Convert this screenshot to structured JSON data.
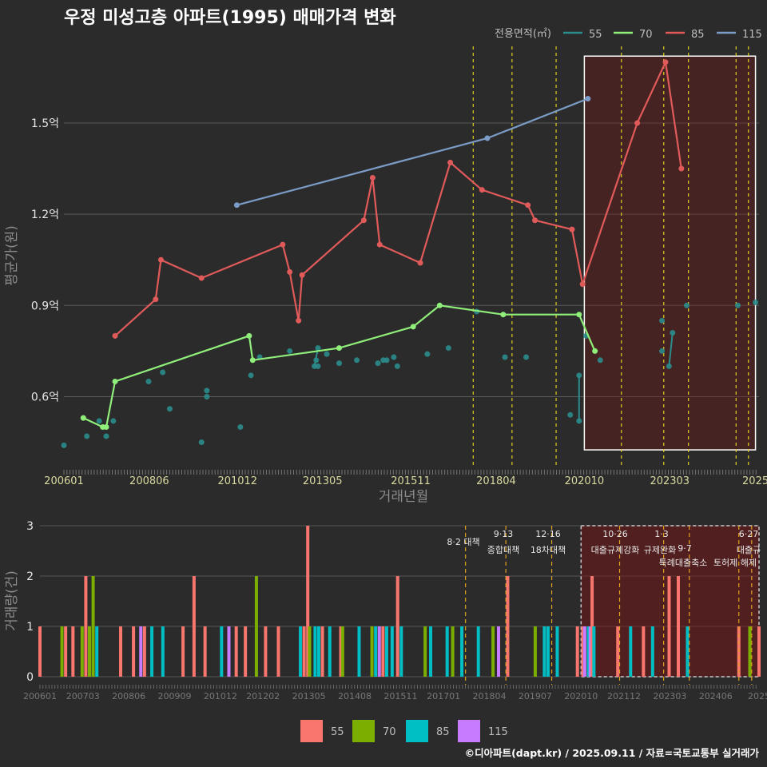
{
  "chart_data": [
    {
      "type": "line",
      "title": "우정 미성고층 아파트(1995) 매매가격 변화",
      "xlabel": "거래년월",
      "ylabel": "평균가(원)",
      "legend_title": "전용면적(㎡)",
      "x_ticks": [
        "200601",
        "200806",
        "201012",
        "201305",
        "201511",
        "201804",
        "202010",
        "202303",
        "2025"
      ],
      "y_ticks": [
        "0.6억",
        "0.9억",
        "1.2억",
        "1.5억"
      ],
      "y_tick_values": [
        0.6,
        0.9,
        1.2,
        1.5
      ],
      "ylim": [
        0.37,
        1.76
      ],
      "xlim": [
        2006.0,
        2025.7
      ],
      "highlight_range": [
        2020.75,
        2025.6
      ],
      "policy_lines": [
        2017.6,
        2018.7,
        2019.95,
        2021.8,
        2023.0,
        2023.7,
        2025.05,
        2025.4
      ],
      "series": [
        {
          "name": "55",
          "color": "#2b8c8c",
          "points": [
            [
              2006.0,
              0.44
            ],
            [
              2007.0,
              0.52
            ],
            [
              2006.65,
              0.47
            ],
            [
              2007.2,
              0.47
            ],
            [
              2007.4,
              0.52
            ],
            [
              2008.4,
              0.65
            ],
            [
              2008.8,
              0.68
            ],
            [
              2009.0,
              0.56
            ],
            [
              2009.9,
              0.45
            ],
            [
              2010.05,
              0.6
            ],
            [
              2010.05,
              0.62
            ],
            [
              2011.0,
              0.5
            ],
            [
              2011.3,
              0.67
            ],
            [
              2011.55,
              0.73
            ],
            [
              2012.4,
              0.75
            ],
            [
              2013.1,
              0.7
            ],
            [
              2013.15,
              0.72
            ],
            [
              2013.2,
              0.76
            ],
            [
              2013.2,
              0.7
            ],
            [
              2013.45,
              0.74
            ],
            [
              2013.8,
              0.71
            ],
            [
              2014.3,
              0.72
            ],
            [
              2014.9,
              0.71
            ],
            [
              2015.05,
              0.72
            ],
            [
              2015.15,
              0.72
            ],
            [
              2015.35,
              0.73
            ],
            [
              2015.45,
              0.7
            ],
            [
              2016.3,
              0.74
            ],
            [
              2016.9,
              0.76
            ],
            [
              2017.7,
              0.88
            ],
            [
              2018.5,
              0.73
            ],
            [
              2019.1,
              0.73
            ],
            [
              2020.35,
              0.54
            ],
            [
              2020.6,
              0.52
            ],
            [
              2020.6,
              0.67
            ],
            [
              2020.8,
              0.8
            ],
            [
              2021.2,
              0.72
            ],
            [
              2022.95,
              0.85
            ],
            [
              2022.95,
              0.75
            ],
            [
              2023.15,
              0.7
            ],
            [
              2023.25,
              0.81
            ],
            [
              2023.65,
              0.9
            ],
            [
              2025.1,
              0.9
            ],
            [
              2025.6,
              0.91
            ]
          ]
        },
        {
          "name": "70",
          "color": "#90ee7a",
          "points": [
            [
              2006.55,
              0.53
            ],
            [
              2007.1,
              0.5
            ],
            [
              2007.2,
              0.5
            ],
            [
              2007.45,
              0.65
            ],
            [
              2011.25,
              0.8
            ],
            [
              2011.35,
              0.72
            ],
            [
              2013.8,
              0.76
            ],
            [
              2015.9,
              0.83
            ],
            [
              2016.65,
              0.9
            ],
            [
              2018.45,
              0.87
            ],
            [
              2020.6,
              0.87
            ],
            [
              2021.05,
              0.75
            ]
          ]
        },
        {
          "name": "85",
          "color": "#e05a5a",
          "points": [
            [
              2007.45,
              0.8
            ],
            [
              2008.6,
              0.92
            ],
            [
              2008.75,
              1.05
            ],
            [
              2009.9,
              0.99
            ],
            [
              2012.2,
              1.1
            ],
            [
              2012.4,
              1.01
            ],
            [
              2012.65,
              0.85
            ],
            [
              2012.75,
              1.0
            ],
            [
              2014.5,
              1.18
            ],
            [
              2014.75,
              1.32
            ],
            [
              2014.95,
              1.1
            ],
            [
              2016.1,
              1.04
            ],
            [
              2016.95,
              1.37
            ],
            [
              2017.85,
              1.28
            ],
            [
              2019.15,
              1.23
            ],
            [
              2019.35,
              1.18
            ],
            [
              2020.4,
              1.15
            ],
            [
              2020.7,
              0.97
            ],
            [
              2022.25,
              1.5
            ],
            [
              2023.05,
              1.7
            ],
            [
              2023.5,
              1.35
            ]
          ]
        },
        {
          "name": "115",
          "color": "#7a9cc6",
          "points": [
            [
              2010.9,
              1.23
            ],
            [
              2018.0,
              1.45
            ],
            [
              2020.85,
              1.58
            ]
          ]
        }
      ]
    },
    {
      "type": "bar",
      "ylabel": "거래량(건)",
      "y_ticks": [
        "0",
        "1",
        "2",
        "3"
      ],
      "ylim": [
        0,
        3
      ],
      "x_ticks": [
        "200601",
        "200703",
        "200806",
        "200909",
        "201012",
        "201202",
        "201305",
        "201408",
        "201511",
        "201701",
        "201804",
        "201907",
        "202010",
        "202112",
        "202303",
        "202406",
        "2025"
      ],
      "legend": [
        "55",
        "70",
        "85",
        "115"
      ],
      "legend_colors": [
        "#f8766d",
        "#7cae00",
        "#00bfc4",
        "#c77cff"
      ],
      "policies": [
        {
          "x": 2017.6,
          "label": "8·2 대책",
          "line2": ""
        },
        {
          "x": 2018.7,
          "label": "9·13",
          "line2": "종합대책"
        },
        {
          "x": 2019.95,
          "label": "12·16",
          "line2": "18차대책"
        },
        {
          "x": 2021.8,
          "label": "10·26",
          "line2": "대출규제강화"
        },
        {
          "x": 2023.0,
          "label": "1·3",
          "line2": "규제완화"
        },
        {
          "x": 2023.7,
          "label": "9·7",
          "line2": "특례대출축소"
        },
        {
          "x": 2025.05,
          "label": "",
          "line2": "토허제 해제"
        },
        {
          "x": 2025.4,
          "label": "6·27",
          "line2": "대출규"
        }
      ],
      "bars": [
        [
          2006.0,
          1,
          "55"
        ],
        [
          2006.6,
          1,
          "70"
        ],
        [
          2006.7,
          1,
          "55"
        ],
        [
          2006.9,
          1,
          "55"
        ],
        [
          2007.15,
          1,
          "70"
        ],
        [
          2007.25,
          2,
          "55"
        ],
        [
          2007.35,
          1,
          "70"
        ],
        [
          2007.45,
          2,
          "70"
        ],
        [
          2007.55,
          1,
          "85"
        ],
        [
          2008.2,
          1,
          "55"
        ],
        [
          2008.55,
          1,
          "55"
        ],
        [
          2008.75,
          1,
          "115"
        ],
        [
          2008.85,
          1,
          "55"
        ],
        [
          2009.05,
          1,
          "85"
        ],
        [
          2009.35,
          1,
          "85"
        ],
        [
          2009.9,
          1,
          "55"
        ],
        [
          2010.2,
          2,
          "55"
        ],
        [
          2010.5,
          1,
          "55"
        ],
        [
          2010.95,
          1,
          "85"
        ],
        [
          2011.15,
          1,
          "115"
        ],
        [
          2011.35,
          1,
          "55"
        ],
        [
          2011.6,
          1,
          "55"
        ],
        [
          2011.9,
          2,
          "70"
        ],
        [
          2012.15,
          1,
          "55"
        ],
        [
          2012.5,
          1,
          "55"
        ],
        [
          2013.1,
          1,
          "85"
        ],
        [
          2013.2,
          1,
          "55"
        ],
        [
          2013.3,
          3,
          "55"
        ],
        [
          2013.35,
          1,
          "70"
        ],
        [
          2013.5,
          1,
          "85"
        ],
        [
          2013.6,
          1,
          "85"
        ],
        [
          2013.7,
          1,
          "55"
        ],
        [
          2013.9,
          1,
          "85"
        ],
        [
          2014.2,
          1,
          "55"
        ],
        [
          2014.25,
          1,
          "70"
        ],
        [
          2014.7,
          1,
          "85"
        ],
        [
          2015.05,
          1,
          "70"
        ],
        [
          2015.15,
          1,
          "85"
        ],
        [
          2015.25,
          1,
          "115"
        ],
        [
          2015.35,
          1,
          "55"
        ],
        [
          2015.45,
          1,
          "85"
        ],
        [
          2015.6,
          1,
          "85"
        ],
        [
          2015.75,
          2,
          "55"
        ],
        [
          2015.85,
          1,
          "85"
        ],
        [
          2016.5,
          1,
          "70"
        ],
        [
          2016.65,
          1,
          "85"
        ],
        [
          2017.1,
          1,
          "85"
        ],
        [
          2017.25,
          1,
          "70"
        ],
        [
          2017.5,
          1,
          "85"
        ],
        [
          2017.95,
          1,
          "85"
        ],
        [
          2018.35,
          1,
          "70"
        ],
        [
          2018.5,
          1,
          "115"
        ],
        [
          2018.75,
          2,
          "55"
        ],
        [
          2019.5,
          1,
          "70"
        ],
        [
          2019.75,
          1,
          "85"
        ],
        [
          2019.85,
          1,
          "85"
        ],
        [
          2020.1,
          1,
          "85"
        ],
        [
          2020.65,
          1,
          "55"
        ],
        [
          2020.8,
          1,
          "55"
        ],
        [
          2020.85,
          1,
          "115"
        ],
        [
          2020.95,
          1,
          "85"
        ],
        [
          2021.0,
          1,
          "115"
        ],
        [
          2021.05,
          2,
          "55"
        ],
        [
          2021.1,
          1,
          "85"
        ],
        [
          2021.75,
          1,
          "55"
        ],
        [
          2022.1,
          1,
          "85"
        ],
        [
          2022.45,
          1,
          "55"
        ],
        [
          2022.7,
          1,
          "85"
        ],
        [
          2023.15,
          2,
          "55"
        ],
        [
          2023.4,
          2,
          "55"
        ],
        [
          2023.65,
          1,
          "85"
        ],
        [
          2025.05,
          1,
          "55"
        ],
        [
          2025.35,
          1,
          "70"
        ],
        [
          2025.6,
          1,
          "55"
        ]
      ]
    }
  ],
  "legend": {
    "items": [
      "55",
      "70",
      "85",
      "115"
    ]
  },
  "caption": "©디아파트(dapt.kr) / 2025.09.11 / 자료=국토교통부 실거래가"
}
